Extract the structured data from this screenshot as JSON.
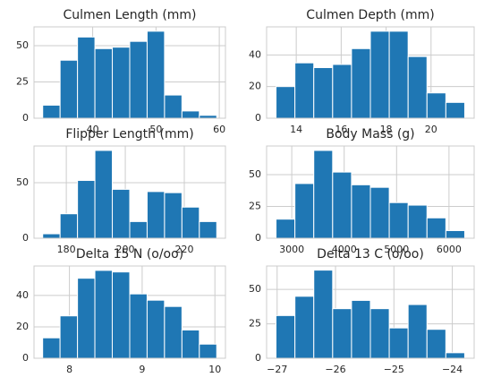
{
  "chart_data": [
    {
      "type": "histogram",
      "title": "Culmen Length (mm)",
      "color": "#1f77b4",
      "grid": true,
      "bins": [
        32.1,
        34.85,
        37.6,
        40.35,
        43.1,
        45.85,
        48.6,
        51.35,
        54.1,
        56.85,
        59.6
      ],
      "values": [
        9,
        40,
        56,
        48,
        49,
        53,
        60,
        16,
        5,
        2
      ],
      "xlim": [
        30.725,
        60.975
      ],
      "xticks": [
        40,
        50,
        60
      ],
      "ylim": [
        0,
        63
      ],
      "yticks": [
        0,
        25,
        50
      ]
    },
    {
      "type": "histogram",
      "title": "Culmen Depth (mm)",
      "color": "#1f77b4",
      "grid": true,
      "bins": [
        13.1,
        13.94,
        14.78,
        15.62,
        16.46,
        17.3,
        18.14,
        18.98,
        19.82,
        20.66,
        21.5
      ],
      "values": [
        20,
        35,
        32,
        34,
        44,
        55,
        55,
        39,
        16,
        10
      ],
      "xlim": [
        12.68,
        21.92
      ],
      "xticks": [
        14,
        16,
        18,
        20
      ],
      "ylim": [
        0,
        57.75
      ],
      "yticks": [
        0,
        20,
        40
      ]
    },
    {
      "type": "histogram",
      "title": "Flipper Length (mm)",
      "color": "#1f77b4",
      "grid": true,
      "bins": [
        172,
        177.9,
        183.8,
        189.7,
        195.6,
        201.5,
        207.4,
        213.3,
        219.2,
        225.1,
        231
      ],
      "values": [
        4,
        22,
        52,
        79,
        44,
        15,
        42,
        41,
        28,
        15
      ],
      "xlim": [
        169.05,
        233.95
      ],
      "xticks": [
        180,
        200,
        220
      ],
      "ylim": [
        0,
        83
      ],
      "yticks": [
        0,
        50
      ]
    },
    {
      "type": "histogram",
      "title": "Body Mass (g)",
      "color": "#1f77b4",
      "grid": true,
      "bins": [
        2700,
        3060,
        3420,
        3780,
        4140,
        4500,
        4860,
        5220,
        5580,
        5940,
        6300
      ],
      "values": [
        15,
        43,
        69,
        52,
        42,
        40,
        28,
        26,
        16,
        6
      ],
      "xlim": [
        2520,
        6480
      ],
      "xticks": [
        3000,
        4000,
        5000,
        6000
      ],
      "ylim": [
        0,
        72.5
      ],
      "yticks": [
        0,
        25,
        50
      ]
    },
    {
      "type": "histogram",
      "title": "Delta 15 N (o/oo)",
      "color": "#1f77b4",
      "grid": true,
      "bins": [
        7.632,
        7.871,
        8.111,
        8.35,
        8.589,
        8.829,
        9.068,
        9.307,
        9.547,
        9.786,
        10.025
      ],
      "values": [
        13,
        27,
        51,
        56,
        55,
        41,
        37,
        33,
        18,
        9
      ],
      "xlim": [
        7.513,
        10.145
      ],
      "xticks": [
        8,
        9,
        10
      ],
      "ylim": [
        0,
        58.8
      ],
      "yticks": [
        0,
        20,
        40
      ]
    },
    {
      "type": "histogram",
      "title": "Delta 13 C (o/oo)",
      "color": "#1f77b4",
      "grid": true,
      "bins": [
        -27.019,
        -26.695,
        -26.372,
        -26.049,
        -25.726,
        -25.403,
        -25.08,
        -24.757,
        -24.434,
        -24.111,
        -23.788
      ],
      "values": [
        31,
        45,
        64,
        36,
        42,
        36,
        22,
        39,
        21,
        4
      ],
      "xlim": [
        -27.18,
        -23.626
      ],
      "xticks": [
        {
          "value": -27,
          "label": "−27"
        },
        {
          "value": -26,
          "label": "−26"
        },
        {
          "value": -25,
          "label": "−25"
        },
        {
          "value": -24,
          "label": "−24"
        }
      ],
      "ylim": [
        0,
        67
      ],
      "yticks": [
        0,
        25,
        50
      ]
    }
  ]
}
